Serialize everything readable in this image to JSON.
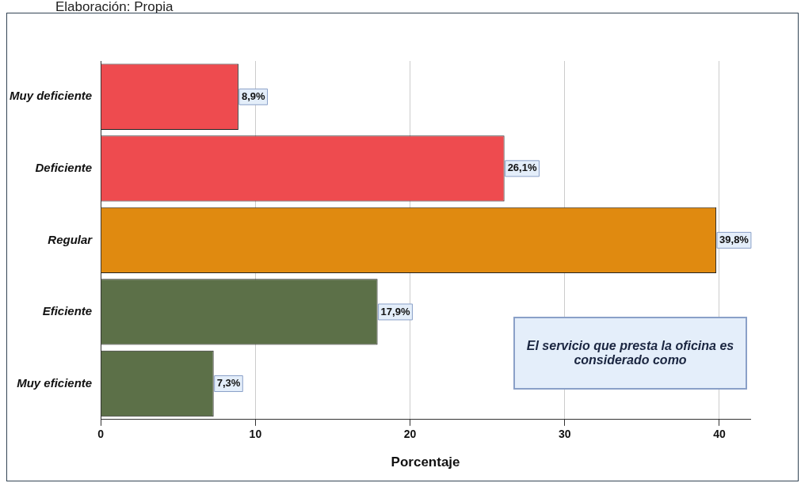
{
  "chart_data": {
    "type": "bar",
    "orientation": "horizontal",
    "categories": [
      "Muy deficiente",
      "Deficiente",
      "Regular",
      "Eficiente",
      "Muy eficiente"
    ],
    "values": [
      8.9,
      26.1,
      39.8,
      17.9,
      7.3
    ],
    "colors": [
      "#ee4b4f",
      "#ee4b4f",
      "#e08a10",
      "#5c7048",
      "#5c7048"
    ],
    "value_labels": [
      "8,9%",
      "26,1%",
      "39,8%",
      "17,9%",
      "7,3%"
    ],
    "xlim": [
      0,
      42
    ],
    "xticks": [
      0,
      10,
      20,
      30,
      40
    ],
    "xlabel": "Porcentaje",
    "grid": "x",
    "legend": false,
    "annotations": [
      "Elaboración: Propia",
      "El servicio que presta la oficina es considerado como"
    ]
  }
}
